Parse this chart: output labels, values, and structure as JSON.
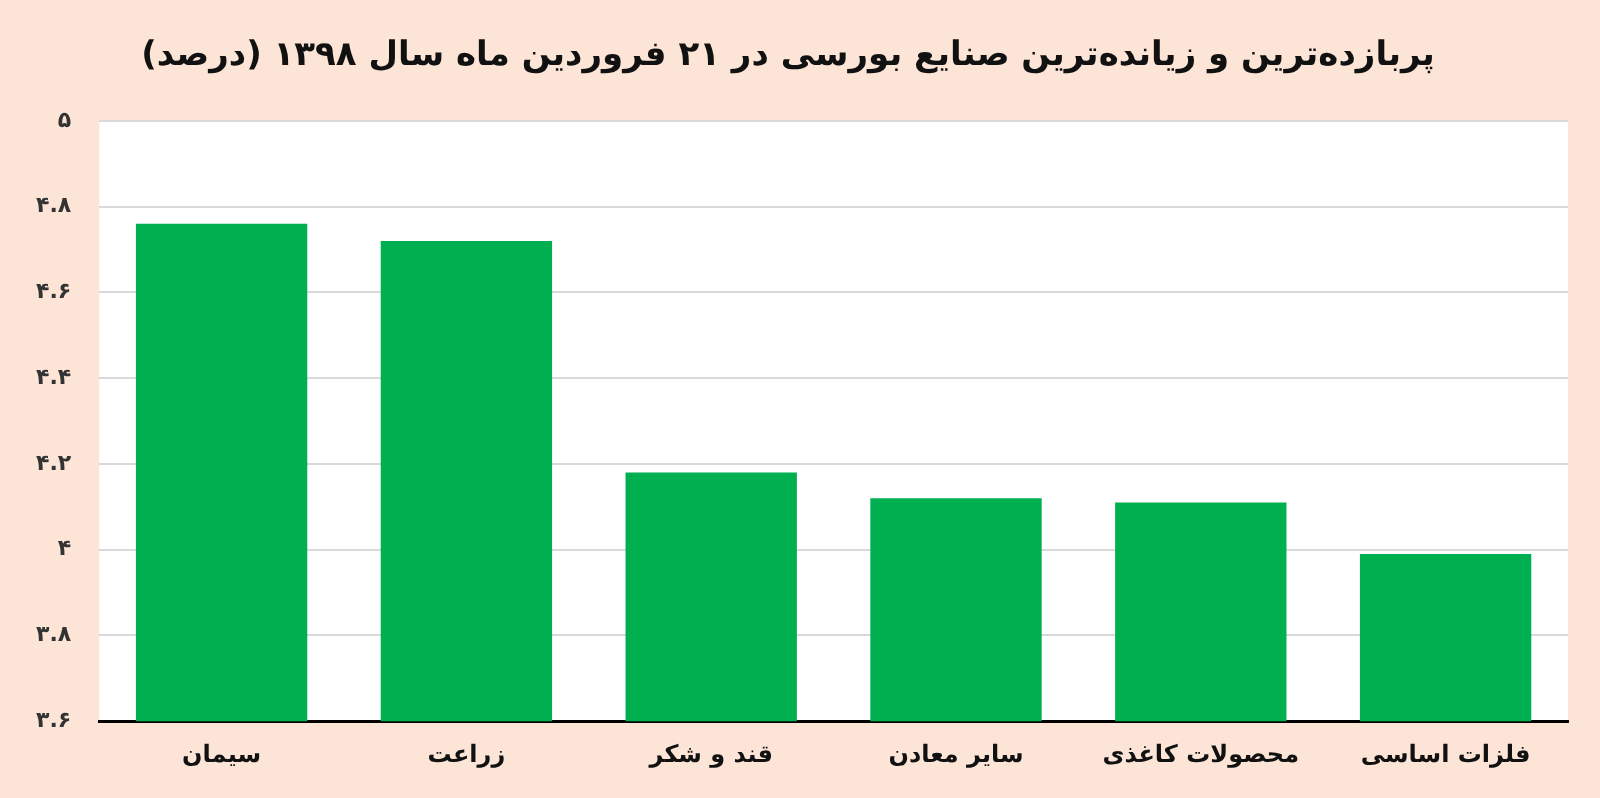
{
  "chart_data": {
    "type": "bar",
    "title": "پربازده‌ترین و زیانده‌ترین صنایع بورسی در ۲۱ فروردین ماه سال ۱۳۹۸ (درصد)",
    "categories": [
      "سیمان",
      "زراعت",
      "قند و شکر",
      "سایر معادن",
      "محصولات کاغذی",
      "فلزات اساسی"
    ],
    "values": [
      4.76,
      4.72,
      4.18,
      4.12,
      4.11,
      3.99
    ],
    "color": "#00b050",
    "ylim": [
      3.6,
      5
    ],
    "yticks": [
      {
        "value": 3.6,
        "label": "۳.۶"
      },
      {
        "value": 3.8,
        "label": "۳.۸"
      },
      {
        "value": 4,
        "label": "۴"
      },
      {
        "value": 4.2,
        "label": "۴.۲"
      },
      {
        "value": 4.4,
        "label": "۴.۴"
      },
      {
        "value": 4.6,
        "label": "۴.۶"
      },
      {
        "value": 4.8,
        "label": "۴.۸"
      },
      {
        "value": 5,
        "label": "۵"
      }
    ],
    "grid": "y",
    "legend": false
  }
}
